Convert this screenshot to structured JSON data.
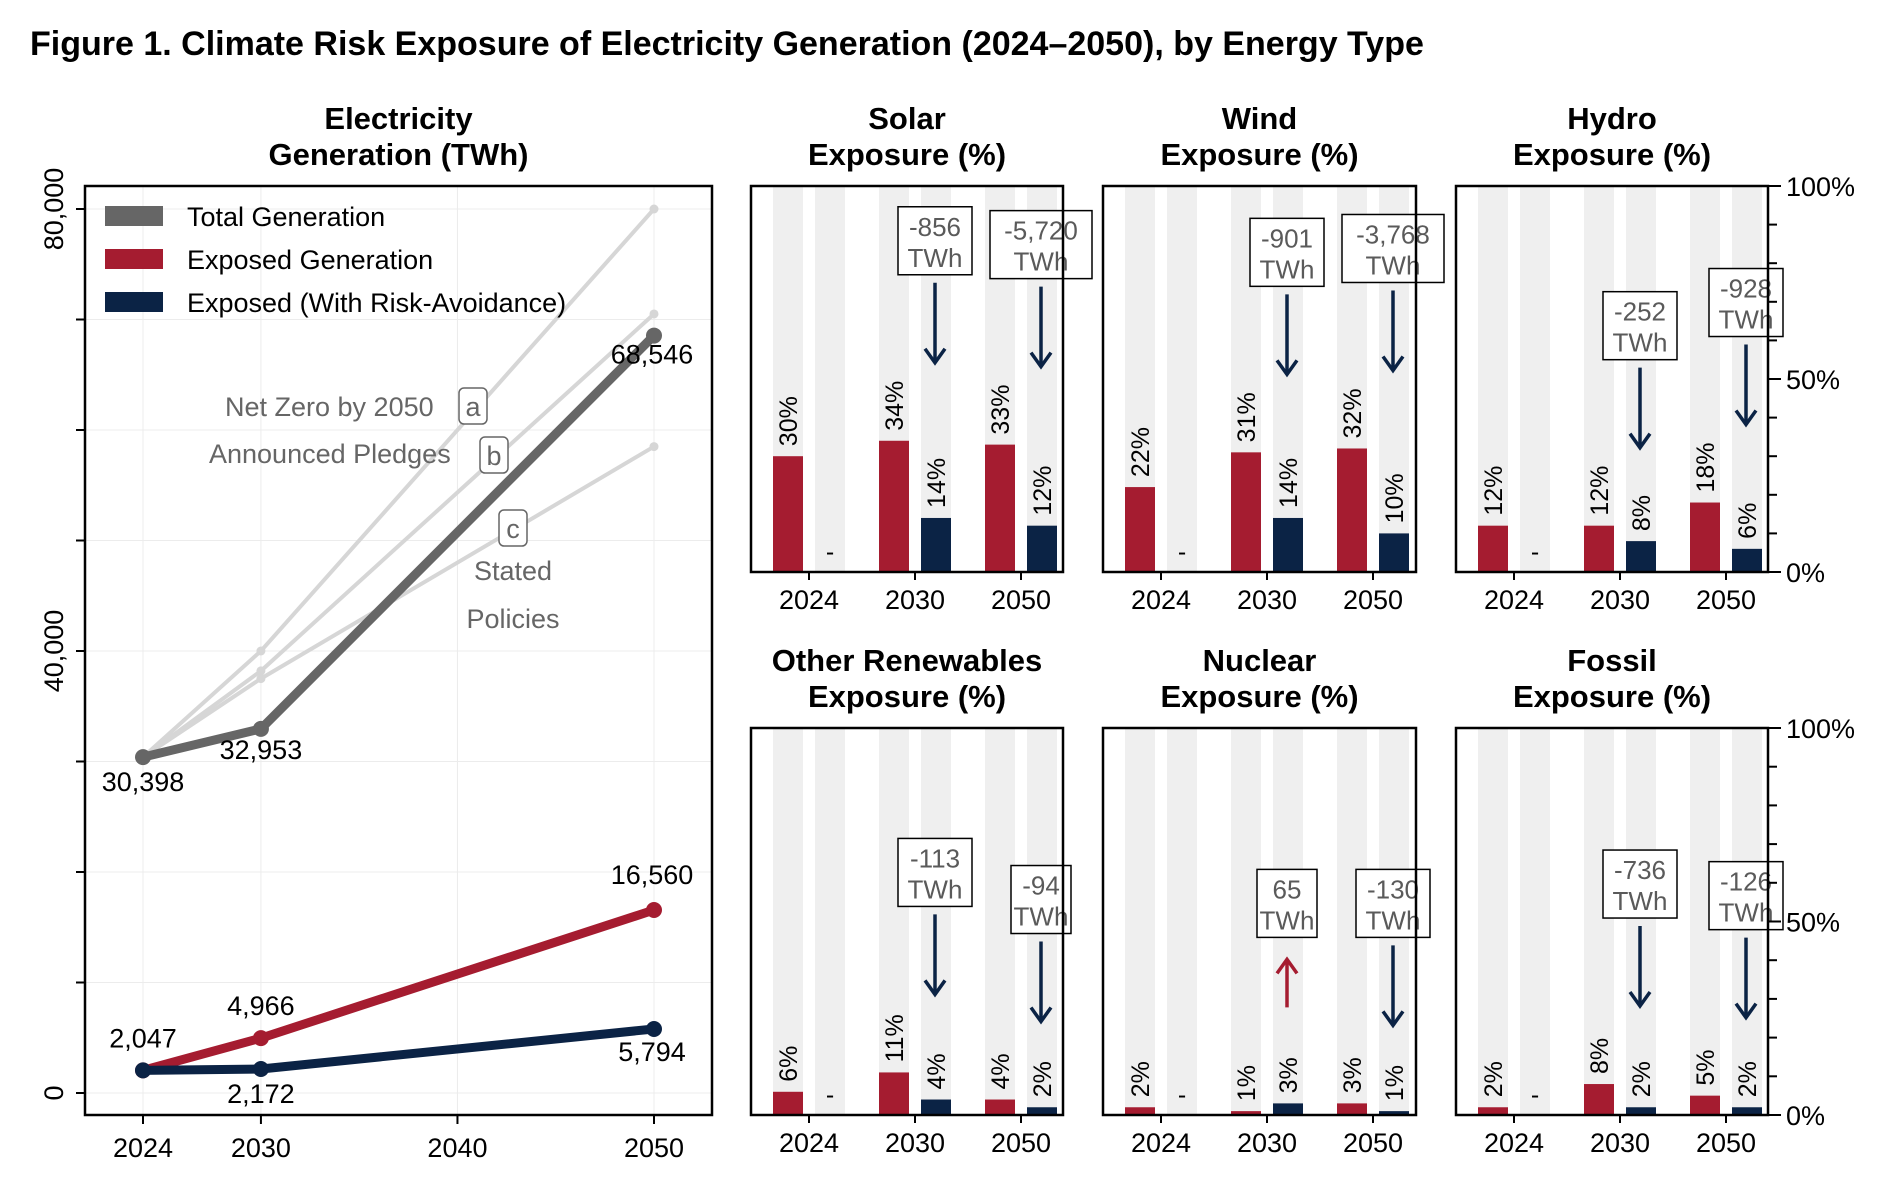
{
  "title": "Figure 1. Climate Risk Exposure of Electricity Generation (2024–2050), by Energy Type",
  "colors": {
    "total": "#666666",
    "exposed": "#a51c30",
    "avoid": "#0b2345",
    "scenario": "#d6d6d6",
    "band": "#efefef",
    "up_arrow": "#a51c30",
    "down_arrow": "#0b2345"
  },
  "chart_data": [
    {
      "type": "line",
      "title": "Electricity\nGeneration (TWh)",
      "x_ticks": [
        "2024",
        "2030",
        "2040",
        "2050"
      ],
      "y_ticks": [
        "0",
        "40,000",
        "80,000"
      ],
      "xlim": [
        2024,
        2050
      ],
      "ylim": [
        0,
        80000
      ],
      "grid": true,
      "legend_position": "top-left",
      "legend": [
        "Total Generation",
        "Exposed Generation",
        "Exposed (With Risk-Avoidance)"
      ],
      "series": [
        {
          "name": "Total Generation",
          "x": [
            2024,
            2030,
            2050
          ],
          "y": [
            30398,
            32953,
            68546
          ],
          "labels": [
            "30,398",
            "32,953",
            "68,546"
          ]
        },
        {
          "name": "Exposed Generation",
          "x": [
            2024,
            2030,
            2050
          ],
          "y": [
            2047,
            4966,
            16560
          ],
          "labels": [
            "2,047",
            "4,966",
            "16,560"
          ]
        },
        {
          "name": "Exposed (With Risk-Avoidance)",
          "x": [
            2024,
            2030,
            2050
          ],
          "y": [
            2047,
            2172,
            5794
          ],
          "labels": [
            "",
            "2,172",
            "5,794"
          ]
        }
      ],
      "scenarios": [
        {
          "name": "Net Zero by 2050",
          "tag": "a",
          "x": [
            2024,
            2030,
            2050
          ],
          "y": [
            30398,
            40000,
            80000
          ]
        },
        {
          "name": "Announced Pledges",
          "tag": "b",
          "x": [
            2024,
            2030,
            2050
          ],
          "y": [
            30398,
            38200,
            70500
          ]
        },
        {
          "name": "Stated\nPolicies",
          "tag": "c",
          "x": [
            2024,
            2030,
            2050
          ],
          "y": [
            30398,
            37500,
            58500
          ]
        }
      ]
    },
    {
      "type": "bar",
      "title": "Solar\nExposure (%)",
      "categories": [
        "2024",
        "2030",
        "2050"
      ],
      "ylim": [
        0,
        100
      ],
      "series": [
        {
          "name": "Exposed Generation",
          "values": [
            30,
            34,
            33
          ]
        },
        {
          "name": "Exposed (With Risk-Avoidance)",
          "values": [
            null,
            14,
            12
          ]
        }
      ],
      "annotations": [
        null,
        {
          "text": "-856\nTWh",
          "direction": "down"
        },
        {
          "text": "-5,720\nTWh",
          "direction": "down"
        }
      ]
    },
    {
      "type": "bar",
      "title": "Wind\nExposure (%)",
      "categories": [
        "2024",
        "2030",
        "2050"
      ],
      "ylim": [
        0,
        100
      ],
      "series": [
        {
          "name": "Exposed Generation",
          "values": [
            22,
            31,
            32
          ]
        },
        {
          "name": "Exposed (With Risk-Avoidance)",
          "values": [
            null,
            14,
            10
          ]
        }
      ],
      "annotations": [
        null,
        {
          "text": "-901\nTWh",
          "direction": "down"
        },
        {
          "text": "-3,768\nTWh",
          "direction": "down"
        }
      ]
    },
    {
      "type": "bar",
      "title": "Hydro\nExposure (%)",
      "categories": [
        "2024",
        "2030",
        "2050"
      ],
      "ylim": [
        0,
        100
      ],
      "y_ticks": [
        "0%",
        "50%",
        "100%"
      ],
      "series": [
        {
          "name": "Exposed Generation",
          "values": [
            12,
            12,
            18
          ]
        },
        {
          "name": "Exposed (With Risk-Avoidance)",
          "values": [
            null,
            8,
            6
          ]
        }
      ],
      "annotations": [
        null,
        {
          "text": "-252\nTWh",
          "direction": "down"
        },
        {
          "text": "-928\nTWh",
          "direction": "down"
        }
      ]
    },
    {
      "type": "bar",
      "title": "Other Renewables\nExposure (%)",
      "categories": [
        "2024",
        "2030",
        "2050"
      ],
      "ylim": [
        0,
        100
      ],
      "series": [
        {
          "name": "Exposed Generation",
          "values": [
            6,
            11,
            4
          ]
        },
        {
          "name": "Exposed (With Risk-Avoidance)",
          "values": [
            null,
            4,
            2
          ]
        }
      ],
      "annotations": [
        null,
        {
          "text": "-113\nTWh",
          "direction": "down"
        },
        {
          "text": "-94\nTWh",
          "direction": "down"
        }
      ]
    },
    {
      "type": "bar",
      "title": "Nuclear\nExposure (%)",
      "categories": [
        "2024",
        "2030",
        "2050"
      ],
      "ylim": [
        0,
        100
      ],
      "series": [
        {
          "name": "Exposed Generation",
          "values": [
            2,
            1,
            3
          ]
        },
        {
          "name": "Exposed (With Risk-Avoidance)",
          "values": [
            null,
            3,
            1
          ]
        }
      ],
      "annotations": [
        null,
        {
          "text": "65\nTWh",
          "direction": "up"
        },
        {
          "text": "-130\nTWh",
          "direction": "down"
        }
      ]
    },
    {
      "type": "bar",
      "title": "Fossil\nExposure (%)",
      "categories": [
        "2024",
        "2030",
        "2050"
      ],
      "ylim": [
        0,
        100
      ],
      "y_ticks": [
        "0%",
        "50%",
        "100%"
      ],
      "series": [
        {
          "name": "Exposed Generation",
          "values": [
            2,
            8,
            5
          ]
        },
        {
          "name": "Exposed (With Risk-Avoidance)",
          "values": [
            null,
            2,
            2
          ]
        }
      ],
      "annotations": [
        null,
        {
          "text": "-736\nTWh",
          "direction": "down"
        },
        {
          "text": "-126\nTWh",
          "direction": "down"
        }
      ]
    }
  ]
}
